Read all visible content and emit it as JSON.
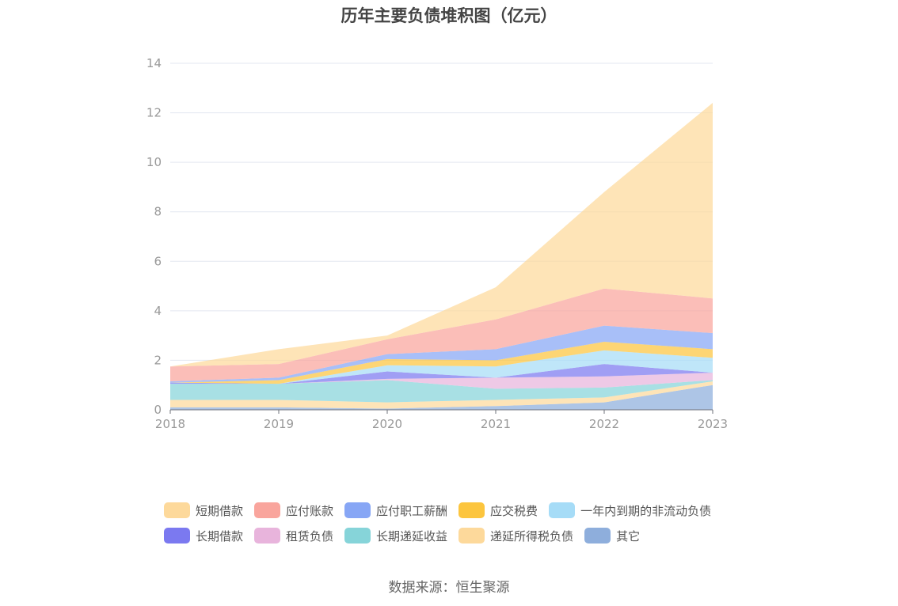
{
  "chart_data": {
    "type": "area",
    "stacked": true,
    "title": "历年主要负债堆积图（亿元）",
    "xlabel": "",
    "ylabel": "",
    "categories": [
      "2018",
      "2019",
      "2020",
      "2021",
      "2022",
      "2023"
    ],
    "ylim": [
      0,
      14
    ],
    "yticks": [
      0,
      2,
      4,
      6,
      8,
      10,
      12,
      14
    ],
    "grid": true,
    "legend_position": "bottom",
    "series": [
      {
        "name": "其它",
        "color": "#8eaedc",
        "values": [
          0.1,
          0.1,
          0.05,
          0.15,
          0.3,
          1.0
        ]
      },
      {
        "name": "递延所得税负债",
        "color": "#fdd99b",
        "values": [
          0.3,
          0.3,
          0.25,
          0.25,
          0.2,
          0.15
        ]
      },
      {
        "name": "长期递延收益",
        "color": "#86d4d9",
        "values": [
          0.65,
          0.65,
          0.9,
          0.45,
          0.4,
          0.05
        ]
      },
      {
        "name": "租赁负债",
        "color": "#e8b4dc",
        "values": [
          0.0,
          0.0,
          0.05,
          0.45,
          0.45,
          0.3
        ]
      },
      {
        "name": "长期借款",
        "color": "#7b79f0",
        "values": [
          0.05,
          0.0,
          0.3,
          0.0,
          0.5,
          0.0
        ]
      },
      {
        "name": "一年内到期的非流动负债",
        "color": "#a6dcf7",
        "values": [
          0.0,
          0.0,
          0.25,
          0.45,
          0.55,
          0.6
        ]
      },
      {
        "name": "应交税费",
        "color": "#fcc53e",
        "values": [
          0.0,
          0.15,
          0.25,
          0.25,
          0.35,
          0.35
        ]
      },
      {
        "name": "应付职工薪酬",
        "color": "#87a6f5",
        "values": [
          0.05,
          0.1,
          0.2,
          0.45,
          0.65,
          0.65
        ]
      },
      {
        "name": "应付账款",
        "color": "#f9a59d",
        "values": [
          0.6,
          0.55,
          0.6,
          1.2,
          1.5,
          1.4
        ]
      },
      {
        "name": "短期借款",
        "color": "#fdd99b",
        "values": [
          0.0,
          0.6,
          0.15,
          1.3,
          3.9,
          7.9
        ]
      }
    ],
    "legend_order": [
      "短期借款",
      "应付账款",
      "应付职工薪酬",
      "应交税费",
      "一年内到期的非流动负债",
      "长期借款",
      "租赁负债",
      "长期递延收益",
      "递延所得税负债",
      "其它"
    ]
  },
  "source_text": "数据来源：恒生聚源"
}
